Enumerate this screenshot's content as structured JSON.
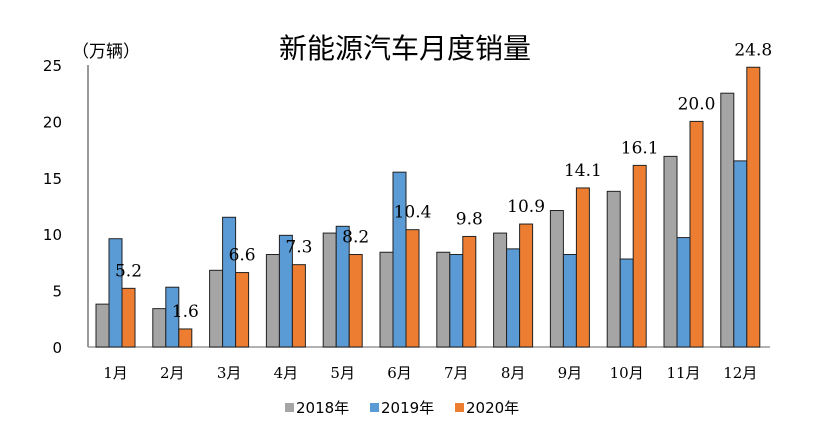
{
  "chart_data": {
    "type": "bar",
    "title": "新能源汽车月度销量",
    "ylabel": "（万辆）",
    "xlabel": "",
    "ylim": [
      0,
      25
    ],
    "yticks": [
      0,
      5,
      10,
      15,
      20,
      25
    ],
    "categories": [
      "1月",
      "2月",
      "3月",
      "4月",
      "5月",
      "6月",
      "7月",
      "8月",
      "9月",
      "10月",
      "11月",
      "12月"
    ],
    "series": [
      {
        "name": "2018年",
        "color": "#A5A5A5",
        "values": [
          3.8,
          3.4,
          6.8,
          8.2,
          10.1,
          8.4,
          8.4,
          10.1,
          12.1,
          13.8,
          16.9,
          22.5
        ]
      },
      {
        "name": "2019年",
        "color": "#5B9BD5",
        "values": [
          9.6,
          5.3,
          11.5,
          9.9,
          10.7,
          15.5,
          8.2,
          8.7,
          8.2,
          7.8,
          9.7,
          16.5
        ]
      },
      {
        "name": "2020年",
        "color": "#ED7D31",
        "values": [
          5.2,
          1.6,
          6.6,
          7.3,
          8.2,
          10.4,
          9.8,
          10.9,
          14.1,
          16.1,
          20.0,
          24.8
        ]
      }
    ],
    "data_labels": [
      "5.2",
      "1.6",
      "6.6",
      "7.3",
      "8.2",
      "10.4",
      "9.8",
      "10.9",
      "14.1",
      "16.1",
      "20.0",
      "24.8"
    ],
    "legend_position": "bottom",
    "grid": false
  }
}
